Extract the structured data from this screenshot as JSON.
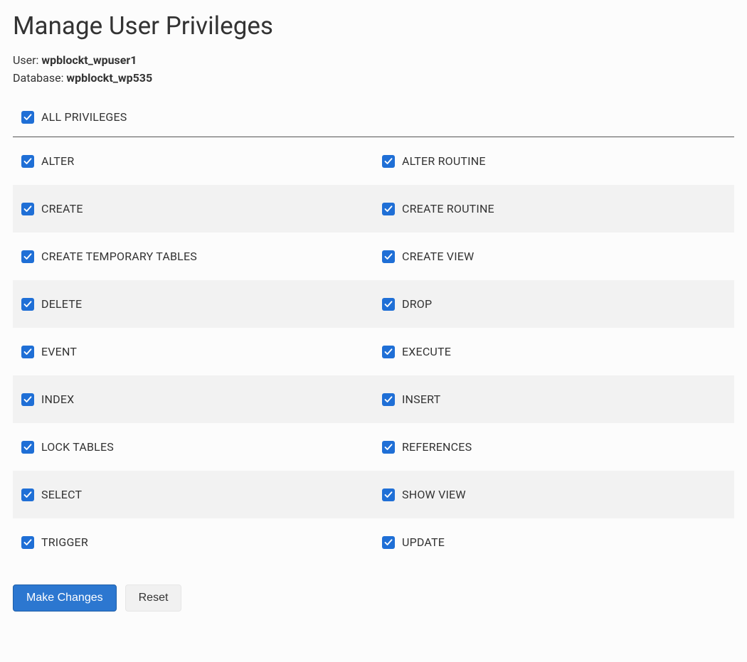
{
  "title": "Manage User Privileges",
  "user_label": "User:",
  "user_value": "wpblockt_wpuser1",
  "db_label": "Database:",
  "db_value": "wpblockt_wp535",
  "all_privileges": {
    "label": "ALL PRIVILEGES",
    "checked": true
  },
  "checkbox_color": "#1f6fd6",
  "row_alt_bg": "#f2f2f2",
  "privileges": [
    {
      "left": {
        "label": "ALTER",
        "checked": true
      },
      "right": {
        "label": "ALTER ROUTINE",
        "checked": true
      }
    },
    {
      "left": {
        "label": "CREATE",
        "checked": true
      },
      "right": {
        "label": "CREATE ROUTINE",
        "checked": true
      }
    },
    {
      "left": {
        "label": "CREATE TEMPORARY TABLES",
        "checked": true
      },
      "right": {
        "label": "CREATE VIEW",
        "checked": true
      }
    },
    {
      "left": {
        "label": "DELETE",
        "checked": true
      },
      "right": {
        "label": "DROP",
        "checked": true
      }
    },
    {
      "left": {
        "label": "EVENT",
        "checked": true
      },
      "right": {
        "label": "EXECUTE",
        "checked": true
      }
    },
    {
      "left": {
        "label": "INDEX",
        "checked": true
      },
      "right": {
        "label": "INSERT",
        "checked": true
      }
    },
    {
      "left": {
        "label": "LOCK TABLES",
        "checked": true
      },
      "right": {
        "label": "REFERENCES",
        "checked": true
      }
    },
    {
      "left": {
        "label": "SELECT",
        "checked": true
      },
      "right": {
        "label": "SHOW VIEW",
        "checked": true
      }
    },
    {
      "left": {
        "label": "TRIGGER",
        "checked": true
      },
      "right": {
        "label": "UPDATE",
        "checked": true
      }
    }
  ],
  "buttons": {
    "primary": "Make Changes",
    "secondary": "Reset"
  }
}
